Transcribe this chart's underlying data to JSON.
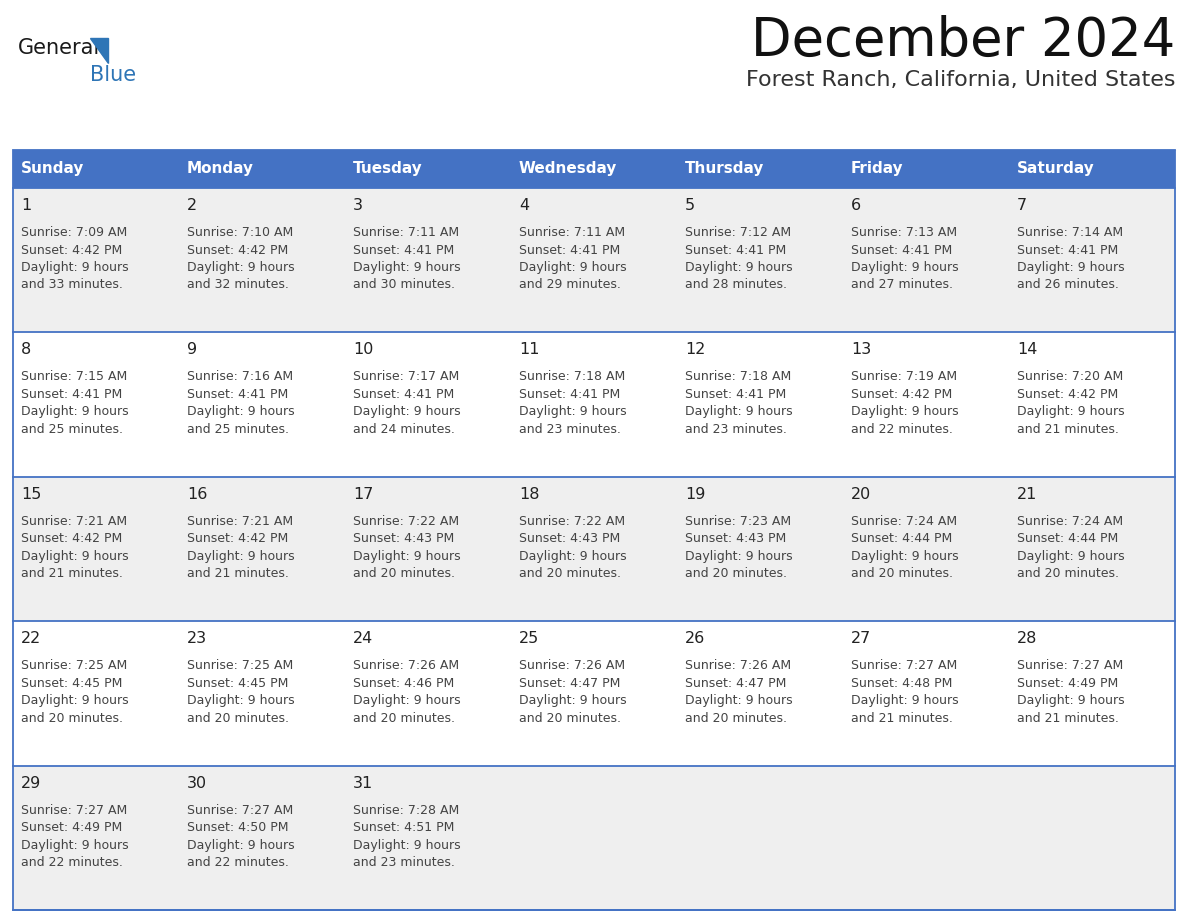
{
  "title": "December 2024",
  "subtitle": "Forest Ranch, California, United States",
  "days_of_week": [
    "Sunday",
    "Monday",
    "Tuesday",
    "Wednesday",
    "Thursday",
    "Friday",
    "Saturday"
  ],
  "header_bg": "#4472C4",
  "header_text": "#FFFFFF",
  "row_bg_odd": "#EFEFEF",
  "row_bg_even": "#FFFFFF",
  "cell_border_color": "#4472C4",
  "day_num_color": "#222222",
  "info_text_color": "#444444",
  "logo_general_color": "#1a1a1a",
  "logo_blue_color": "#2E75B6",
  "title_color": "#111111",
  "subtitle_color": "#333333",
  "weeks": [
    [
      {
        "day": 1,
        "sunrise": "7:09 AM",
        "sunset": "4:42 PM",
        "daylight_h": "9 hours",
        "daylight_m": "and 33 minutes."
      },
      {
        "day": 2,
        "sunrise": "7:10 AM",
        "sunset": "4:42 PM",
        "daylight_h": "9 hours",
        "daylight_m": "and 32 minutes."
      },
      {
        "day": 3,
        "sunrise": "7:11 AM",
        "sunset": "4:41 PM",
        "daylight_h": "9 hours",
        "daylight_m": "and 30 minutes."
      },
      {
        "day": 4,
        "sunrise": "7:11 AM",
        "sunset": "4:41 PM",
        "daylight_h": "9 hours",
        "daylight_m": "and 29 minutes."
      },
      {
        "day": 5,
        "sunrise": "7:12 AM",
        "sunset": "4:41 PM",
        "daylight_h": "9 hours",
        "daylight_m": "and 28 minutes."
      },
      {
        "day": 6,
        "sunrise": "7:13 AM",
        "sunset": "4:41 PM",
        "daylight_h": "9 hours",
        "daylight_m": "and 27 minutes."
      },
      {
        "day": 7,
        "sunrise": "7:14 AM",
        "sunset": "4:41 PM",
        "daylight_h": "9 hours",
        "daylight_m": "and 26 minutes."
      }
    ],
    [
      {
        "day": 8,
        "sunrise": "7:15 AM",
        "sunset": "4:41 PM",
        "daylight_h": "9 hours",
        "daylight_m": "and 25 minutes."
      },
      {
        "day": 9,
        "sunrise": "7:16 AM",
        "sunset": "4:41 PM",
        "daylight_h": "9 hours",
        "daylight_m": "and 25 minutes."
      },
      {
        "day": 10,
        "sunrise": "7:17 AM",
        "sunset": "4:41 PM",
        "daylight_h": "9 hours",
        "daylight_m": "and 24 minutes."
      },
      {
        "day": 11,
        "sunrise": "7:18 AM",
        "sunset": "4:41 PM",
        "daylight_h": "9 hours",
        "daylight_m": "and 23 minutes."
      },
      {
        "day": 12,
        "sunrise": "7:18 AM",
        "sunset": "4:41 PM",
        "daylight_h": "9 hours",
        "daylight_m": "and 23 minutes."
      },
      {
        "day": 13,
        "sunrise": "7:19 AM",
        "sunset": "4:42 PM",
        "daylight_h": "9 hours",
        "daylight_m": "and 22 minutes."
      },
      {
        "day": 14,
        "sunrise": "7:20 AM",
        "sunset": "4:42 PM",
        "daylight_h": "9 hours",
        "daylight_m": "and 21 minutes."
      }
    ],
    [
      {
        "day": 15,
        "sunrise": "7:21 AM",
        "sunset": "4:42 PM",
        "daylight_h": "9 hours",
        "daylight_m": "and 21 minutes."
      },
      {
        "day": 16,
        "sunrise": "7:21 AM",
        "sunset": "4:42 PM",
        "daylight_h": "9 hours",
        "daylight_m": "and 21 minutes."
      },
      {
        "day": 17,
        "sunrise": "7:22 AM",
        "sunset": "4:43 PM",
        "daylight_h": "9 hours",
        "daylight_m": "and 20 minutes."
      },
      {
        "day": 18,
        "sunrise": "7:22 AM",
        "sunset": "4:43 PM",
        "daylight_h": "9 hours",
        "daylight_m": "and 20 minutes."
      },
      {
        "day": 19,
        "sunrise": "7:23 AM",
        "sunset": "4:43 PM",
        "daylight_h": "9 hours",
        "daylight_m": "and 20 minutes."
      },
      {
        "day": 20,
        "sunrise": "7:24 AM",
        "sunset": "4:44 PM",
        "daylight_h": "9 hours",
        "daylight_m": "and 20 minutes."
      },
      {
        "day": 21,
        "sunrise": "7:24 AM",
        "sunset": "4:44 PM",
        "daylight_h": "9 hours",
        "daylight_m": "and 20 minutes."
      }
    ],
    [
      {
        "day": 22,
        "sunrise": "7:25 AM",
        "sunset": "4:45 PM",
        "daylight_h": "9 hours",
        "daylight_m": "and 20 minutes."
      },
      {
        "day": 23,
        "sunrise": "7:25 AM",
        "sunset": "4:45 PM",
        "daylight_h": "9 hours",
        "daylight_m": "and 20 minutes."
      },
      {
        "day": 24,
        "sunrise": "7:26 AM",
        "sunset": "4:46 PM",
        "daylight_h": "9 hours",
        "daylight_m": "and 20 minutes."
      },
      {
        "day": 25,
        "sunrise": "7:26 AM",
        "sunset": "4:47 PM",
        "daylight_h": "9 hours",
        "daylight_m": "and 20 minutes."
      },
      {
        "day": 26,
        "sunrise": "7:26 AM",
        "sunset": "4:47 PM",
        "daylight_h": "9 hours",
        "daylight_m": "and 20 minutes."
      },
      {
        "day": 27,
        "sunrise": "7:27 AM",
        "sunset": "4:48 PM",
        "daylight_h": "9 hours",
        "daylight_m": "and 21 minutes."
      },
      {
        "day": 28,
        "sunrise": "7:27 AM",
        "sunset": "4:49 PM",
        "daylight_h": "9 hours",
        "daylight_m": "and 21 minutes."
      }
    ],
    [
      {
        "day": 29,
        "sunrise": "7:27 AM",
        "sunset": "4:49 PM",
        "daylight_h": "9 hours",
        "daylight_m": "and 22 minutes."
      },
      {
        "day": 30,
        "sunrise": "7:27 AM",
        "sunset": "4:50 PM",
        "daylight_h": "9 hours",
        "daylight_m": "and 22 minutes."
      },
      {
        "day": 31,
        "sunrise": "7:28 AM",
        "sunset": "4:51 PM",
        "daylight_h": "9 hours",
        "daylight_m": "and 23 minutes."
      },
      null,
      null,
      null,
      null
    ]
  ]
}
